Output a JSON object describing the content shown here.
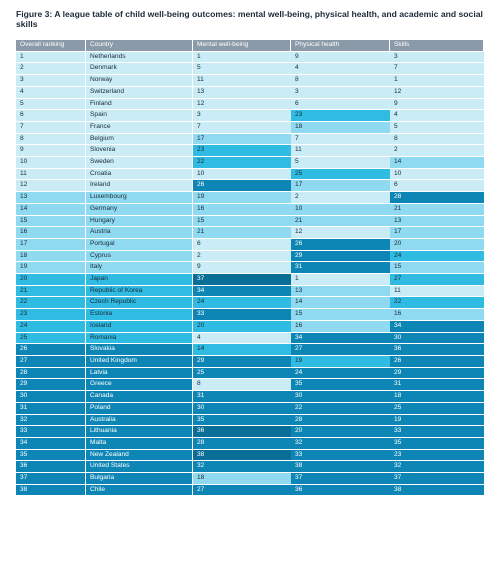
{
  "figure": {
    "title": "Figure 3: A league table of child well-being outcomes: mental well-being, physical health, and academic and social skills"
  },
  "table": {
    "headers": [
      "Overall ranking",
      "Country",
      "Mental well-being",
      "Physical health",
      "Skills"
    ],
    "tier_colors": {
      "1": "#c9ecf7",
      "2": "#8fdaf0",
      "3": "#2fbbe2",
      "4": "#0e86b5",
      "5": "#0a6e97"
    },
    "rows": [
      {
        "rank": "1",
        "country": "Netherlands",
        "mental": "1",
        "physical": "9",
        "skills": "3",
        "tier": [
          1,
          1,
          1,
          1,
          1
        ]
      },
      {
        "rank": "2",
        "country": "Denmark",
        "mental": "5",
        "physical": "4",
        "skills": "7",
        "tier": [
          1,
          1,
          1,
          1,
          1
        ]
      },
      {
        "rank": "3",
        "country": "Norway",
        "mental": "11",
        "physical": "8",
        "skills": "1",
        "tier": [
          1,
          1,
          1,
          1,
          1
        ]
      },
      {
        "rank": "4",
        "country": "Switzerland",
        "mental": "13",
        "physical": "3",
        "skills": "12",
        "tier": [
          1,
          1,
          1,
          1,
          1
        ]
      },
      {
        "rank": "5",
        "country": "Finland",
        "mental": "12",
        "physical": "6",
        "skills": "9",
        "tier": [
          1,
          1,
          1,
          1,
          1
        ]
      },
      {
        "rank": "6",
        "country": "Spain",
        "mental": "3",
        "physical": "23",
        "skills": "4",
        "tier": [
          1,
          1,
          1,
          3,
          1
        ]
      },
      {
        "rank": "7",
        "country": "France",
        "mental": "7",
        "physical": "18",
        "skills": "5",
        "tier": [
          1,
          1,
          1,
          2,
          1
        ]
      },
      {
        "rank": "8",
        "country": "Belgium",
        "mental": "17",
        "physical": "7",
        "skills": "8",
        "tier": [
          1,
          1,
          2,
          1,
          1
        ]
      },
      {
        "rank": "9",
        "country": "Slovenia",
        "mental": "23",
        "physical": "11",
        "skills": "2",
        "tier": [
          1,
          1,
          3,
          1,
          1
        ]
      },
      {
        "rank": "10",
        "country": "Sweden",
        "mental": "22",
        "physical": "5",
        "skills": "14",
        "tier": [
          1,
          1,
          3,
          1,
          2
        ]
      },
      {
        "rank": "11",
        "country": "Croatia",
        "mental": "10",
        "physical": "25",
        "skills": "10",
        "tier": [
          1,
          1,
          1,
          3,
          1
        ]
      },
      {
        "rank": "12",
        "country": "Ireland",
        "mental": "26",
        "physical": "17",
        "skills": "6",
        "tier": [
          1,
          1,
          4,
          2,
          1
        ]
      },
      {
        "rank": "13",
        "country": "Luxembourg",
        "mental": "19",
        "physical": "2",
        "skills": "28",
        "tier": [
          2,
          2,
          2,
          1,
          4
        ]
      },
      {
        "rank": "14",
        "country": "Germany",
        "mental": "16",
        "physical": "10",
        "skills": "21",
        "tier": [
          2,
          2,
          2,
          2,
          2
        ]
      },
      {
        "rank": "15",
        "country": "Hungary",
        "mental": "15",
        "physical": "21",
        "skills": "13",
        "tier": [
          2,
          2,
          2,
          2,
          2
        ]
      },
      {
        "rank": "16",
        "country": "Austria",
        "mental": "21",
        "physical": "12",
        "skills": "17",
        "tier": [
          2,
          2,
          2,
          1,
          2
        ]
      },
      {
        "rank": "17",
        "country": "Portugal",
        "mental": "6",
        "physical": "26",
        "skills": "20",
        "tier": [
          2,
          2,
          1,
          4,
          2
        ]
      },
      {
        "rank": "18",
        "country": "Cyprus",
        "mental": "2",
        "physical": "29",
        "skills": "24",
        "tier": [
          2,
          2,
          1,
          4,
          3
        ]
      },
      {
        "rank": "19",
        "country": "Italy",
        "mental": "9",
        "physical": "31",
        "skills": "15",
        "tier": [
          2,
          2,
          1,
          4,
          2
        ]
      },
      {
        "rank": "20",
        "country": "Japan",
        "mental": "37",
        "physical": "1",
        "skills": "27",
        "tier": [
          3,
          3,
          5,
          1,
          3
        ]
      },
      {
        "rank": "21",
        "country": "Republic of Korea",
        "mental": "34",
        "physical": "13",
        "skills": "11",
        "tier": [
          3,
          3,
          4,
          2,
          1
        ]
      },
      {
        "rank": "22",
        "country": "Czech Republic",
        "mental": "24",
        "physical": "14",
        "skills": "22",
        "tier": [
          3,
          3,
          3,
          2,
          3
        ]
      },
      {
        "rank": "23",
        "country": "Estonia",
        "mental": "33",
        "physical": "15",
        "skills": "16",
        "tier": [
          3,
          3,
          4,
          2,
          2
        ]
      },
      {
        "rank": "24",
        "country": "Iceland",
        "mental": "20",
        "physical": "16",
        "skills": "34",
        "tier": [
          3,
          3,
          3,
          2,
          4
        ]
      },
      {
        "rank": "25",
        "country": "Romania",
        "mental": "4",
        "physical": "34",
        "skills": "30",
        "tier": [
          3,
          3,
          1,
          4,
          4
        ]
      },
      {
        "rank": "26",
        "country": "Slovakia",
        "mental": "14",
        "physical": "27",
        "skills": "36",
        "tier": [
          4,
          4,
          3,
          4,
          4
        ]
      },
      {
        "rank": "27",
        "country": "United Kingdom",
        "mental": "29",
        "physical": "19",
        "skills": "26",
        "tier": [
          4,
          4,
          4,
          3,
          4
        ]
      },
      {
        "rank": "28",
        "country": "Latvia",
        "mental": "25",
        "physical": "24",
        "skills": "29",
        "tier": [
          4,
          4,
          4,
          4,
          4
        ]
      },
      {
        "rank": "29",
        "country": "Greece",
        "mental": "8",
        "physical": "35",
        "skills": "31",
        "tier": [
          4,
          4,
          1,
          4,
          4
        ]
      },
      {
        "rank": "30",
        "country": "Canada",
        "mental": "31",
        "physical": "30",
        "skills": "18",
        "tier": [
          4,
          4,
          4,
          4,
          4
        ]
      },
      {
        "rank": "31",
        "country": "Poland",
        "mental": "30",
        "physical": "22",
        "skills": "25",
        "tier": [
          4,
          4,
          4,
          4,
          4
        ]
      },
      {
        "rank": "32",
        "country": "Australia",
        "mental": "35",
        "physical": "28",
        "skills": "19",
        "tier": [
          4,
          4,
          4,
          4,
          4
        ]
      },
      {
        "rank": "33",
        "country": "Lithuania",
        "mental": "36",
        "physical": "20",
        "skills": "33",
        "tier": [
          4,
          4,
          5,
          4,
          4
        ]
      },
      {
        "rank": "34",
        "country": "Malta",
        "mental": "28",
        "physical": "32",
        "skills": "35",
        "tier": [
          4,
          4,
          4,
          4,
          4
        ]
      },
      {
        "rank": "35",
        "country": "New Zealand",
        "mental": "38",
        "physical": "33",
        "skills": "23",
        "tier": [
          4,
          4,
          5,
          4,
          4
        ]
      },
      {
        "rank": "36",
        "country": "United States",
        "mental": "32",
        "physical": "38",
        "skills": "32",
        "tier": [
          4,
          4,
          4,
          4,
          4
        ]
      },
      {
        "rank": "37",
        "country": "Bulgaria",
        "mental": "18",
        "physical": "37",
        "skills": "37",
        "tier": [
          4,
          4,
          2,
          4,
          4
        ]
      },
      {
        "rank": "38",
        "country": "Chile",
        "mental": "27",
        "physical": "36",
        "skills": "38",
        "tier": [
          4,
          4,
          4,
          4,
          4
        ]
      }
    ]
  }
}
